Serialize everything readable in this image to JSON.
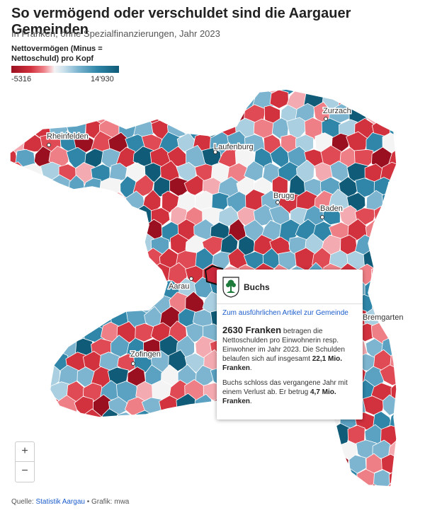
{
  "title": "So vermögend oder verschuldet sind die Aargauer Gemeinden",
  "subtitle": "In Franken, ohne Spezialfinanzierungen, Jahr 2023",
  "legend": {
    "title_line1": "Nettovermögen (Minus =",
    "title_line2": "Nettoschuld) pro Kopf",
    "min": "-5316",
    "max": "14'930",
    "colors": {
      "strong_debt": "#9b1020",
      "debt": "#d2313e",
      "light_debt": "#ee7f86",
      "neutral": "#f4f4f4",
      "light_wealth": "#7db5d0",
      "wealth": "#2f86a8",
      "strong_wealth": "#0f5b78"
    }
  },
  "cities": {
    "rheinfelden": "Rheinfelden",
    "laufenburg": "Laufenburg",
    "zurzach": "Zurzach",
    "brugg": "Brugg",
    "baden": "Baden",
    "aarau": "Aarau",
    "bremgarten": "Bremgarten",
    "zofingen": "Zofingen"
  },
  "tooltip": {
    "name": "Buchs",
    "link": "Zum ausführlichen Artikel zur Gemeinde",
    "amount": "2630 Franken",
    "text1": " betragen die Nettoschulden pro Einwohnerin resp. Einwohner im Jahr 2023. Die Schulden belaufen sich auf insgesamt ",
    "total": "22,1 Mio. Franken",
    "text1_end": ".",
    "text2": "Buchs schloss das vergangene Jahr mit einem Verlust ab. Er betrug ",
    "loss": "4,7 Mio. Franken",
    "text2_end": "."
  },
  "zoom": {
    "in": "+",
    "out": "−"
  },
  "footer": {
    "source_label": "Quelle: ",
    "source_link": "Statistik Aargau",
    "credit": " • Grafik: mwa"
  }
}
